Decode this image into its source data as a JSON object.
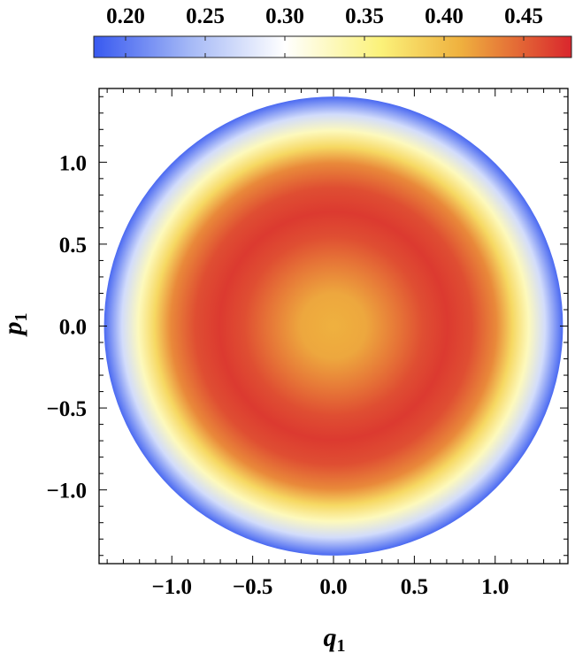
{
  "chart_data": {
    "type": "heatmap",
    "title": "",
    "xlabel": "q",
    "xlabel_sub": "1",
    "ylabel": "p",
    "ylabel_sub": "1",
    "xlim": [
      -1.45,
      1.45
    ],
    "ylim": [
      -1.45,
      1.45
    ],
    "x_ticks": [
      {
        "value": -1.0,
        "label": "−1.0"
      },
      {
        "value": -0.5,
        "label": "−0.5"
      },
      {
        "value": 0.0,
        "label": "0.0"
      },
      {
        "value": 0.5,
        "label": "0.5"
      },
      {
        "value": 1.0,
        "label": "1.0"
      }
    ],
    "y_ticks": [
      {
        "value": 1.0,
        "label": "1.0"
      },
      {
        "value": 0.5,
        "label": "0.5"
      },
      {
        "value": 0.0,
        "label": "0.0"
      },
      {
        "value": -0.5,
        "label": "−0.5"
      },
      {
        "value": -1.0,
        "label": "−1.0"
      }
    ],
    "domain_shape": "disk",
    "domain_radius": 1.41,
    "radial_profile": {
      "radius": [
        0.0,
        0.2,
        0.4,
        0.55,
        0.7,
        0.85,
        1.0,
        1.1,
        1.2,
        1.3,
        1.41
      ],
      "value": [
        0.41,
        0.415,
        0.44,
        0.46,
        0.47,
        0.46,
        0.43,
        0.38,
        0.33,
        0.27,
        0.19
      ]
    },
    "colorbar": {
      "range": [
        0.18,
        0.48
      ],
      "position": "top",
      "ticks": [
        {
          "value": 0.2,
          "label": "0.20"
        },
        {
          "value": 0.25,
          "label": "0.25"
        },
        {
          "value": 0.3,
          "label": "0.30"
        },
        {
          "value": 0.35,
          "label": "0.35"
        },
        {
          "value": 0.4,
          "label": "0.40"
        },
        {
          "value": 0.45,
          "label": "0.45"
        }
      ],
      "stops": [
        {
          "value": 0.18,
          "color": "#3859f0"
        },
        {
          "value": 0.24,
          "color": "#a4b8f6"
        },
        {
          "value": 0.3,
          "color": "#ffffff"
        },
        {
          "value": 0.36,
          "color": "#fbf27a"
        },
        {
          "value": 0.41,
          "color": "#efb13f"
        },
        {
          "value": 0.48,
          "color": "#d9262d"
        }
      ]
    }
  }
}
